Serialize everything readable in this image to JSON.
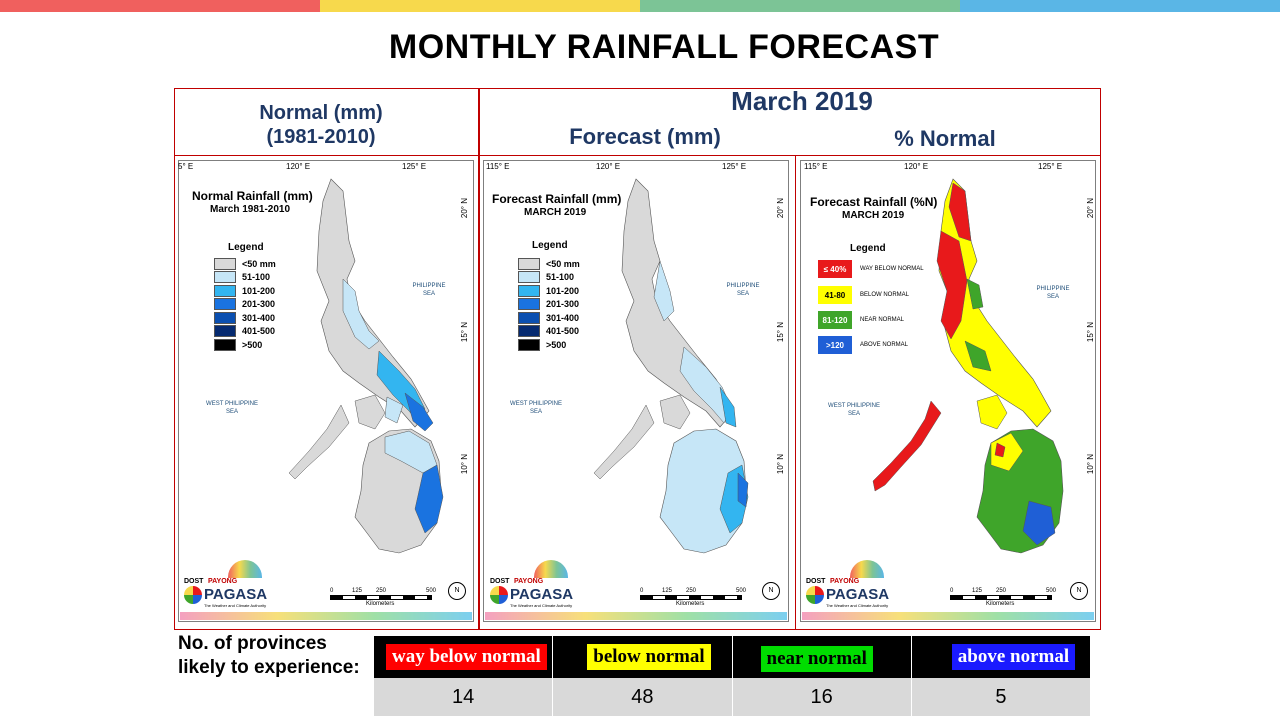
{
  "colors": {
    "top_bar": [
      "#f0605e",
      "#f7d94c",
      "#7cc496",
      "#5ab6e6"
    ],
    "frame": "#c00000",
    "header_text": "#1f3864"
  },
  "title": "MONTHLY RAINFALL FORECAST",
  "headers": {
    "normal_line1": "Normal (mm)",
    "normal_line2": "(1981-2010)",
    "month": "March 2019",
    "forecast": "Forecast (mm)",
    "percent": "% Normal"
  },
  "maps": [
    {
      "title": "Normal Rainfall (mm)",
      "subtitle": "March 1981-2010",
      "lon_labels": [
        "5° E",
        "120° E",
        "125° E"
      ],
      "legend_title": "Legend",
      "legend": [
        {
          "label": "<50 mm",
          "color": "#d9d9d9"
        },
        {
          "label": "51-100",
          "color": "#c6e6f7"
        },
        {
          "label": "101-200",
          "color": "#33b5f0"
        },
        {
          "label": "201-300",
          "color": "#1a73e0"
        },
        {
          "label": "301-400",
          "color": "#0b4fb0"
        },
        {
          "label": "401-500",
          "color": "#062a70"
        },
        {
          "label": ">500",
          "color": "#000000"
        }
      ]
    },
    {
      "title": "Forecast Rainfall (mm)",
      "subtitle": "MARCH 2019",
      "lon_labels": [
        "115° E",
        "120° E",
        "125° E"
      ],
      "legend_title": "Legend",
      "legend": [
        {
          "label": "<50 mm",
          "color": "#d9d9d9"
        },
        {
          "label": "51-100",
          "color": "#c6e6f7"
        },
        {
          "label": "101-200",
          "color": "#33b5f0"
        },
        {
          "label": "201-300",
          "color": "#1a73e0"
        },
        {
          "label": "301-400",
          "color": "#0b4fb0"
        },
        {
          "label": "401-500",
          "color": "#062a70"
        },
        {
          "label": ">500",
          "color": "#000000"
        }
      ]
    },
    {
      "title": "Forecast Rainfall (%N)",
      "subtitle": "MARCH 2019",
      "lon_labels": [
        "115° E",
        "120° E",
        "125° E"
      ],
      "legend_title": "Legend",
      "legend": [
        {
          "box": "≤ 40%",
          "label": "WAY BELOW NORMAL",
          "color": "#e8191b",
          "text_color": "#ffffff"
        },
        {
          "box": "41-80",
          "label": "BELOW NORMAL",
          "color": "#ffff00",
          "text_color": "#000000"
        },
        {
          "box": "81-120",
          "label": "NEAR NORMAL",
          "color": "#3fa52a",
          "text_color": "#ffffff"
        },
        {
          "box": ">120",
          "label": "ABOVE NORMAL",
          "color": "#1f5fd6",
          "text_color": "#ffffff"
        }
      ]
    }
  ],
  "map_common": {
    "lat_labels": [
      "20° N",
      "15° N",
      "10° N"
    ],
    "sea_east_line1": "PHILIPPINE",
    "sea_east_line2": "SEA",
    "sea_west_line1": "WEST PHILIPPINE",
    "sea_west_line2": "SEA",
    "logo_dost": "DOST",
    "logo_payong": "PAYONG",
    "logo_pagasa": "PAGASA",
    "logo_tagline": "The Weather and Climate Authority",
    "scale_ticks": [
      "0",
      "125",
      "250",
      "500"
    ],
    "scale_unit": "Kilometers",
    "north": "N"
  },
  "provinces_label": "No. of provinces likely  to experience:",
  "categories": [
    {
      "label": "way below normal",
      "count": "14",
      "bg": "#ff0000",
      "fg": "#ffffff"
    },
    {
      "label": "below normal",
      "count": "48",
      "bg": "#ffff00",
      "fg": "#000000"
    },
    {
      "label": "near normal",
      "count": "16",
      "bg": "#00dd00",
      "fg": "#000000"
    },
    {
      "label": "above normal",
      "count": "5",
      "bg": "#1a1aff",
      "fg": "#ffffff"
    }
  ]
}
